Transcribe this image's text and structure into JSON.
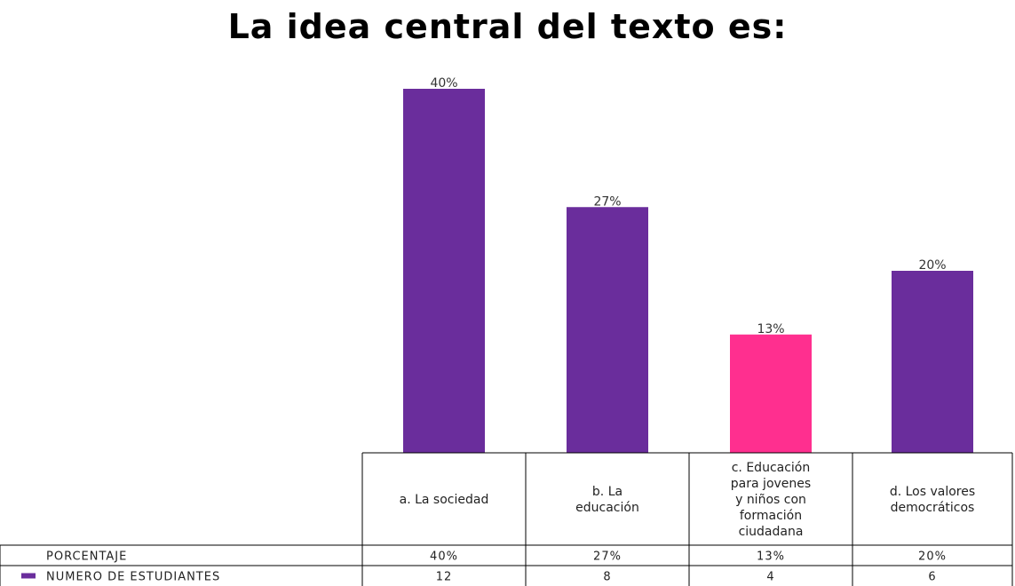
{
  "chart_data": {
    "type": "bar",
    "title": "La idea  central del texto es:",
    "categories": [
      "a. La sociedad",
      "b. La educación",
      "c. Educación para jovenes y niños con formación ciudadana",
      "d. Los valores democráticos"
    ],
    "category_lines": [
      [
        "a. La sociedad"
      ],
      [
        "b. La",
        "educación"
      ],
      [
        "c. Educación",
        "para jovenes",
        "y niños con",
        "formación",
        "ciudadana"
      ],
      [
        "d. Los valores",
        "democráticos"
      ]
    ],
    "series": [
      {
        "name": "PORCENTAJE",
        "values": [
          40,
          27,
          13,
          20
        ],
        "labels": [
          "40%",
          "27%",
          "13%",
          "20%"
        ]
      },
      {
        "name": "NUMERO DE ESTUDIANTES",
        "values": [
          12,
          8,
          4,
          6
        ],
        "labels": [
          "12",
          "8",
          "4",
          "6"
        ]
      }
    ],
    "bar_colors": [
      "#6a2d9c",
      "#6a2d9c",
      "#ff2f8f",
      "#6a2d9c"
    ],
    "legend_marker_color": "#6a2d9c",
    "ylim": [
      0,
      40
    ],
    "grid": false,
    "xlabel": "",
    "ylabel": ""
  }
}
